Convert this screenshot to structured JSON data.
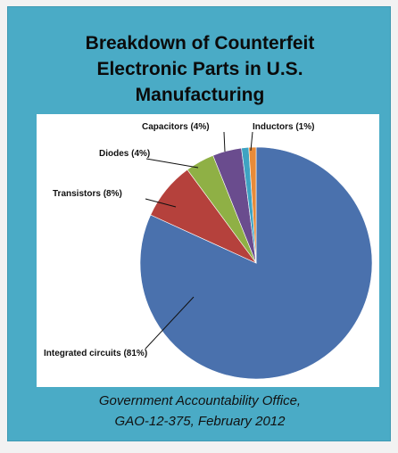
{
  "title_lines": [
    "Breakdown of Counterfeit",
    "Electronic Parts in U.S.",
    "Manufacturing"
  ],
  "source_lines": [
    "Government Accountability Office,",
    "GAO-12-375, February 2012"
  ],
  "chart_data": {
    "type": "pie",
    "title": "Breakdown of Counterfeit Electronic Parts in U.S. Manufacturing",
    "slices": [
      {
        "label": "Integrated circuits (81%)",
        "value": 81,
        "color": "#4a71ad"
      },
      {
        "label": "Transistors (8%)",
        "value": 8,
        "color": "#b5413c"
      },
      {
        "label": "Diodes (4%)",
        "value": 4,
        "color": "#8fb045"
      },
      {
        "label": "Capacitors (4%)",
        "value": 4,
        "color": "#6a4c8e"
      },
      {
        "label": "Inductors (1%)",
        "value": 1,
        "color": "#3ea3c2"
      },
      {
        "label": "",
        "value": 1,
        "color": "#e88b39"
      }
    ],
    "legend": "none"
  }
}
